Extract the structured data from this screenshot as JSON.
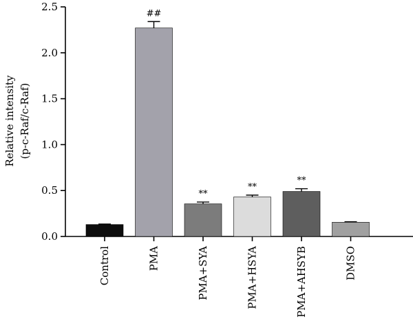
{
  "chart_data": {
    "type": "bar",
    "ylabel_lines": [
      "Relative intensity",
      "(p-c-Raf/c-Raf)"
    ],
    "xlabel": "",
    "ylim": [
      0,
      2.5
    ],
    "yticks": [
      "0.0",
      "0.5",
      "1.0",
      "1.5",
      "2.0",
      "2.5"
    ],
    "categories": [
      "Control",
      "PMA",
      "PMA+SYA",
      "PMA+HSYA",
      "PMA+AHSYB",
      "DMSO"
    ],
    "values": [
      0.13,
      2.27,
      0.355,
      0.43,
      0.49,
      0.155
    ],
    "errors": [
      0.005,
      0.07,
      0.02,
      0.02,
      0.03,
      0.005
    ],
    "annotations": [
      "",
      "##",
      "**",
      "**",
      "**",
      ""
    ],
    "colors": [
      "#0d0d0d",
      "#a3a2ab",
      "#7c7c7c",
      "#dcdcdc",
      "#5e5e5e",
      "#a0a0a0"
    ],
    "grid": false,
    "legend": "none"
  }
}
